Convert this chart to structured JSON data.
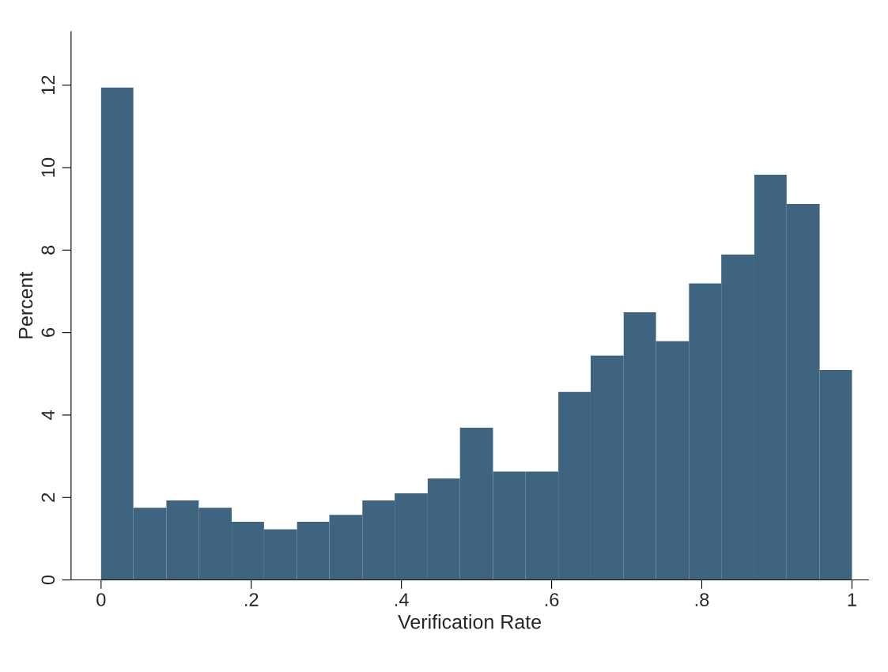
{
  "chart_data": {
    "type": "histogram",
    "xlabel": "Verification Rate",
    "ylabel": "Percent",
    "bins": [
      0,
      0.043,
      0.087,
      0.13,
      0.174,
      0.217,
      0.261,
      0.304,
      0.348,
      0.391,
      0.435,
      0.478,
      0.522,
      0.565,
      0.609,
      0.652,
      0.696,
      0.739,
      0.783,
      0.826,
      0.87,
      0.913,
      0.957,
      1
    ],
    "values": [
      11.94,
      1.75,
      1.93,
      1.75,
      1.41,
      1.23,
      1.41,
      1.58,
      1.93,
      2.1,
      2.46,
      3.69,
      2.63,
      2.63,
      4.56,
      5.44,
      6.49,
      5.79,
      7.19,
      7.89,
      9.83,
      9.12,
      5.09
    ],
    "color": "#3f6480",
    "xlim": [
      -0.04,
      1.022
    ],
    "ylim": [
      0,
      13.3
    ],
    "xticks": [
      0,
      {
        "value": 0.2,
        "label": ".2"
      },
      {
        "value": 0.4,
        "label": ".4"
      },
      {
        "value": 0.6,
        "label": ".6"
      },
      {
        "value": 0.8,
        "label": ".8"
      },
      1
    ],
    "yticks": [
      0,
      2,
      4,
      6,
      8,
      10,
      12
    ],
    "grid": false,
    "legend": false
  }
}
